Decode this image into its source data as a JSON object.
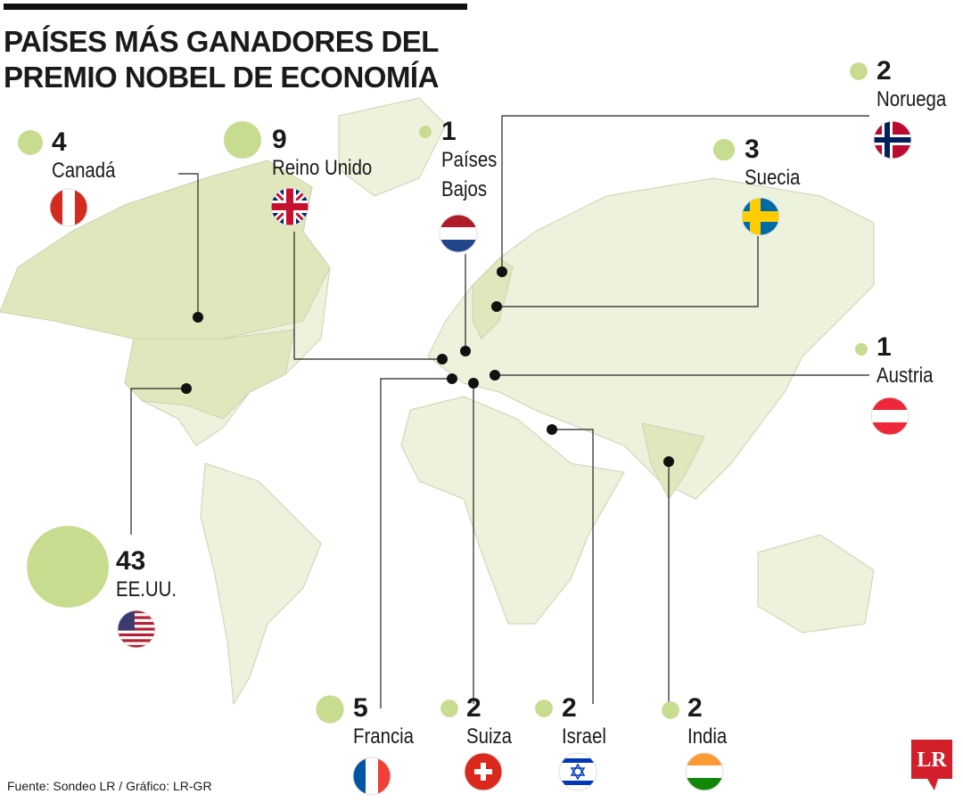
{
  "header": {
    "title": [
      "PAÍSES MÁS GANADORES DEL",
      "PREMIO NOBEL DE ECONOMÍA"
    ]
  },
  "countries": [
    {
      "name": "Canadá",
      "value": 4
    },
    {
      "name": "Reino Unido",
      "value": 9
    },
    {
      "name": "Países Bajos",
      "value": 1
    },
    {
      "name": "Noruega",
      "value": 2
    },
    {
      "name": "Suecia",
      "value": 3
    },
    {
      "name": "Austria",
      "value": 1
    },
    {
      "name": "EE.UU.",
      "value": 43
    },
    {
      "name": "Francia",
      "value": 5
    },
    {
      "name": "Suiza",
      "value": 2
    },
    {
      "name": "Israel",
      "value": 2
    },
    {
      "name": "India",
      "value": 2
    }
  ],
  "footer": {
    "source": "Fuente: Sondeo LR / Gráfico: LR-GR",
    "logo": "LR"
  }
}
